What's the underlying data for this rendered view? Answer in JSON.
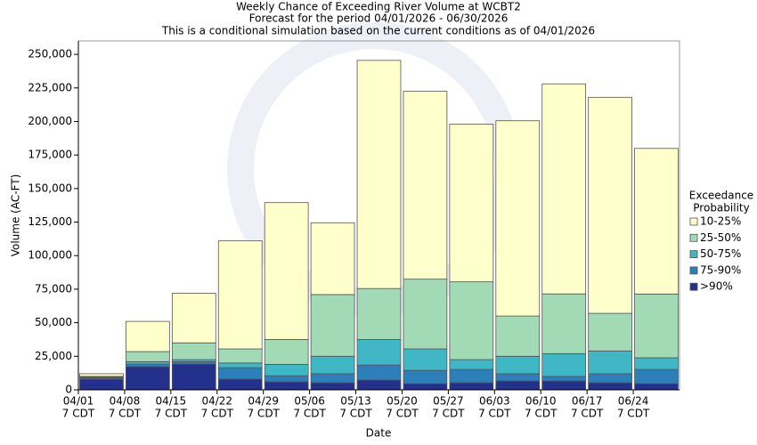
{
  "chart_data": {
    "type": "stacked_bar",
    "title": [
      "Weekly Chance of Exceeding River Volume at WCBT2",
      "Forecast for the period 04/01/2026 - 06/30/2026",
      "This is a conditional simulation based on the current conditions as of 04/01/2026"
    ],
    "x_label": "Date",
    "y_label": "Volume (AC-FT)",
    "legend_title": [
      "Exceedance",
      "Probability"
    ],
    "categories": [
      [
        "04/01",
        "7 CDT"
      ],
      [
        "04/08",
        "7 CDT"
      ],
      [
        "04/15",
        "7 CDT"
      ],
      [
        "04/22",
        "7 CDT"
      ],
      [
        "04/29",
        "7 CDT"
      ],
      [
        "05/06",
        "7 CDT"
      ],
      [
        "05/13",
        "7 CDT"
      ],
      [
        "05/20",
        "7 CDT"
      ],
      [
        "05/27",
        "7 CDT"
      ],
      [
        "06/03",
        "7 CDT"
      ],
      [
        "06/10",
        "7 CDT"
      ],
      [
        "06/17",
        "7 CDT"
      ],
      [
        "06/24",
        "7 CDT"
      ]
    ],
    "series": [
      {
        "name": ">90%",
        "color": "#23318c",
        "values": [
          8000,
          17200,
          19200,
          8000,
          6000,
          5300,
          7300,
          4600,
          5300,
          6600,
          6600,
          5300,
          4600
        ]
      },
      {
        "name": "75-90%",
        "color": "#2c7fb8",
        "values": [
          1000,
          2000,
          1800,
          8500,
          4500,
          6700,
          11200,
          9900,
          9900,
          5400,
          3400,
          6700,
          10600
        ]
      },
      {
        "name": "50-75%",
        "color": "#41b6c4",
        "values": [
          500,
          1800,
          1500,
          3500,
          8500,
          13000,
          19000,
          16000,
          7300,
          13000,
          17000,
          17000,
          8700
        ]
      },
      {
        "name": "25-50%",
        "color": "#a1dab4",
        "values": [
          500,
          7500,
          12500,
          10500,
          18500,
          46000,
          38000,
          52000,
          58000,
          30000,
          44500,
          28000,
          47500
        ]
      },
      {
        "name": "10-25%",
        "color": "#ffffcc",
        "values": [
          2000,
          22500,
          37000,
          80500,
          102000,
          53500,
          170000,
          140000,
          117500,
          145500,
          156500,
          161000,
          108500
        ]
      }
    ],
    "ylim": [
      0,
      260000
    ],
    "yticks": [
      0,
      {
        "value": 25000,
        "label": "25,000"
      },
      {
        "value": 50000,
        "label": "50,000"
      },
      {
        "value": 75000,
        "label": "75,000"
      },
      {
        "value": 100000,
        "label": "100,000"
      },
      {
        "value": 125000,
        "label": "125,000"
      },
      {
        "value": 150000,
        "label": "150,000"
      },
      {
        "value": 175000,
        "label": "175,000"
      },
      {
        "value": 200000,
        "label": "200,000"
      },
      {
        "value": 225000,
        "label": "225,000"
      },
      {
        "value": 250000,
        "label": "250,000"
      }
    ]
  }
}
